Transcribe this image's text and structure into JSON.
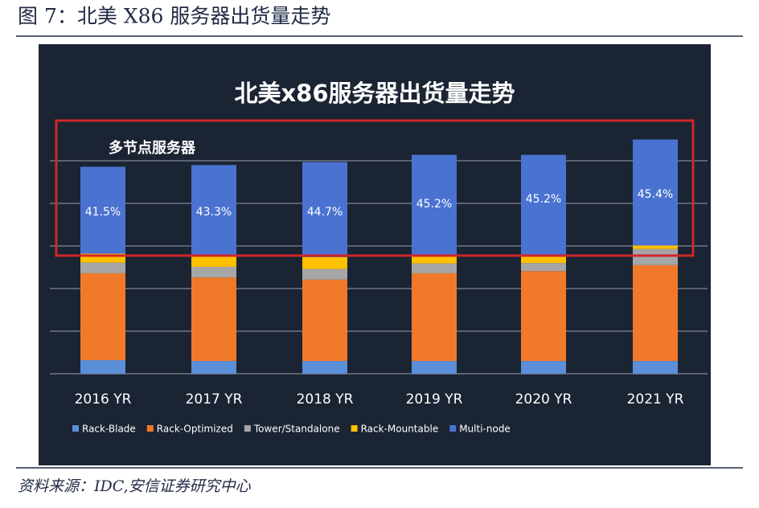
{
  "header": {
    "title": "图 7：北美 X86 服务器出货量走势"
  },
  "chart_data": {
    "type": "bar",
    "stacked": true,
    "title": "北美x86服务器出货量走势",
    "annotation": "多节点服务器",
    "share_labels": [
      "41.5%",
      "43.3%",
      "44.7%",
      "45.2%",
      "45.2%",
      "45.4%"
    ],
    "categories": [
      "2016 YR",
      "2017 YR",
      "2018 YR",
      "2019 YR",
      "2020 YR",
      "2021 YR"
    ],
    "series": [
      {
        "name": "Rack-Blade",
        "color": "#5b8fd8",
        "values": [
          3.2,
          3.0,
          3.0,
          3.0,
          3.0,
          3.0
        ]
      },
      {
        "name": "Rack-Optimized",
        "color": "#f07a2a",
        "values": [
          20.4,
          19.6,
          19.1,
          20.6,
          21.1,
          22.5
        ]
      },
      {
        "name": "Tower/Standalone",
        "color": "#a6a6a6",
        "values": [
          2.5,
          2.5,
          2.5,
          2.3,
          1.9,
          3.8
        ]
      },
      {
        "name": "Rack-Mountable",
        "color": "#ffc000",
        "values": [
          2.1,
          2.6,
          2.8,
          1.9,
          1.9,
          0.8
        ]
      },
      {
        "name": "Multi-node",
        "color": "#4a72d0",
        "values": [
          20.4,
          21.3,
          22.3,
          23.6,
          23.5,
          24.9
        ]
      }
    ],
    "ylim": [
      0,
      60
    ],
    "yticks": [
      0,
      10,
      20,
      30,
      40,
      50
    ],
    "grid": true
  },
  "footer": {
    "source": "资料来源：IDC,安信证券研究中心"
  }
}
